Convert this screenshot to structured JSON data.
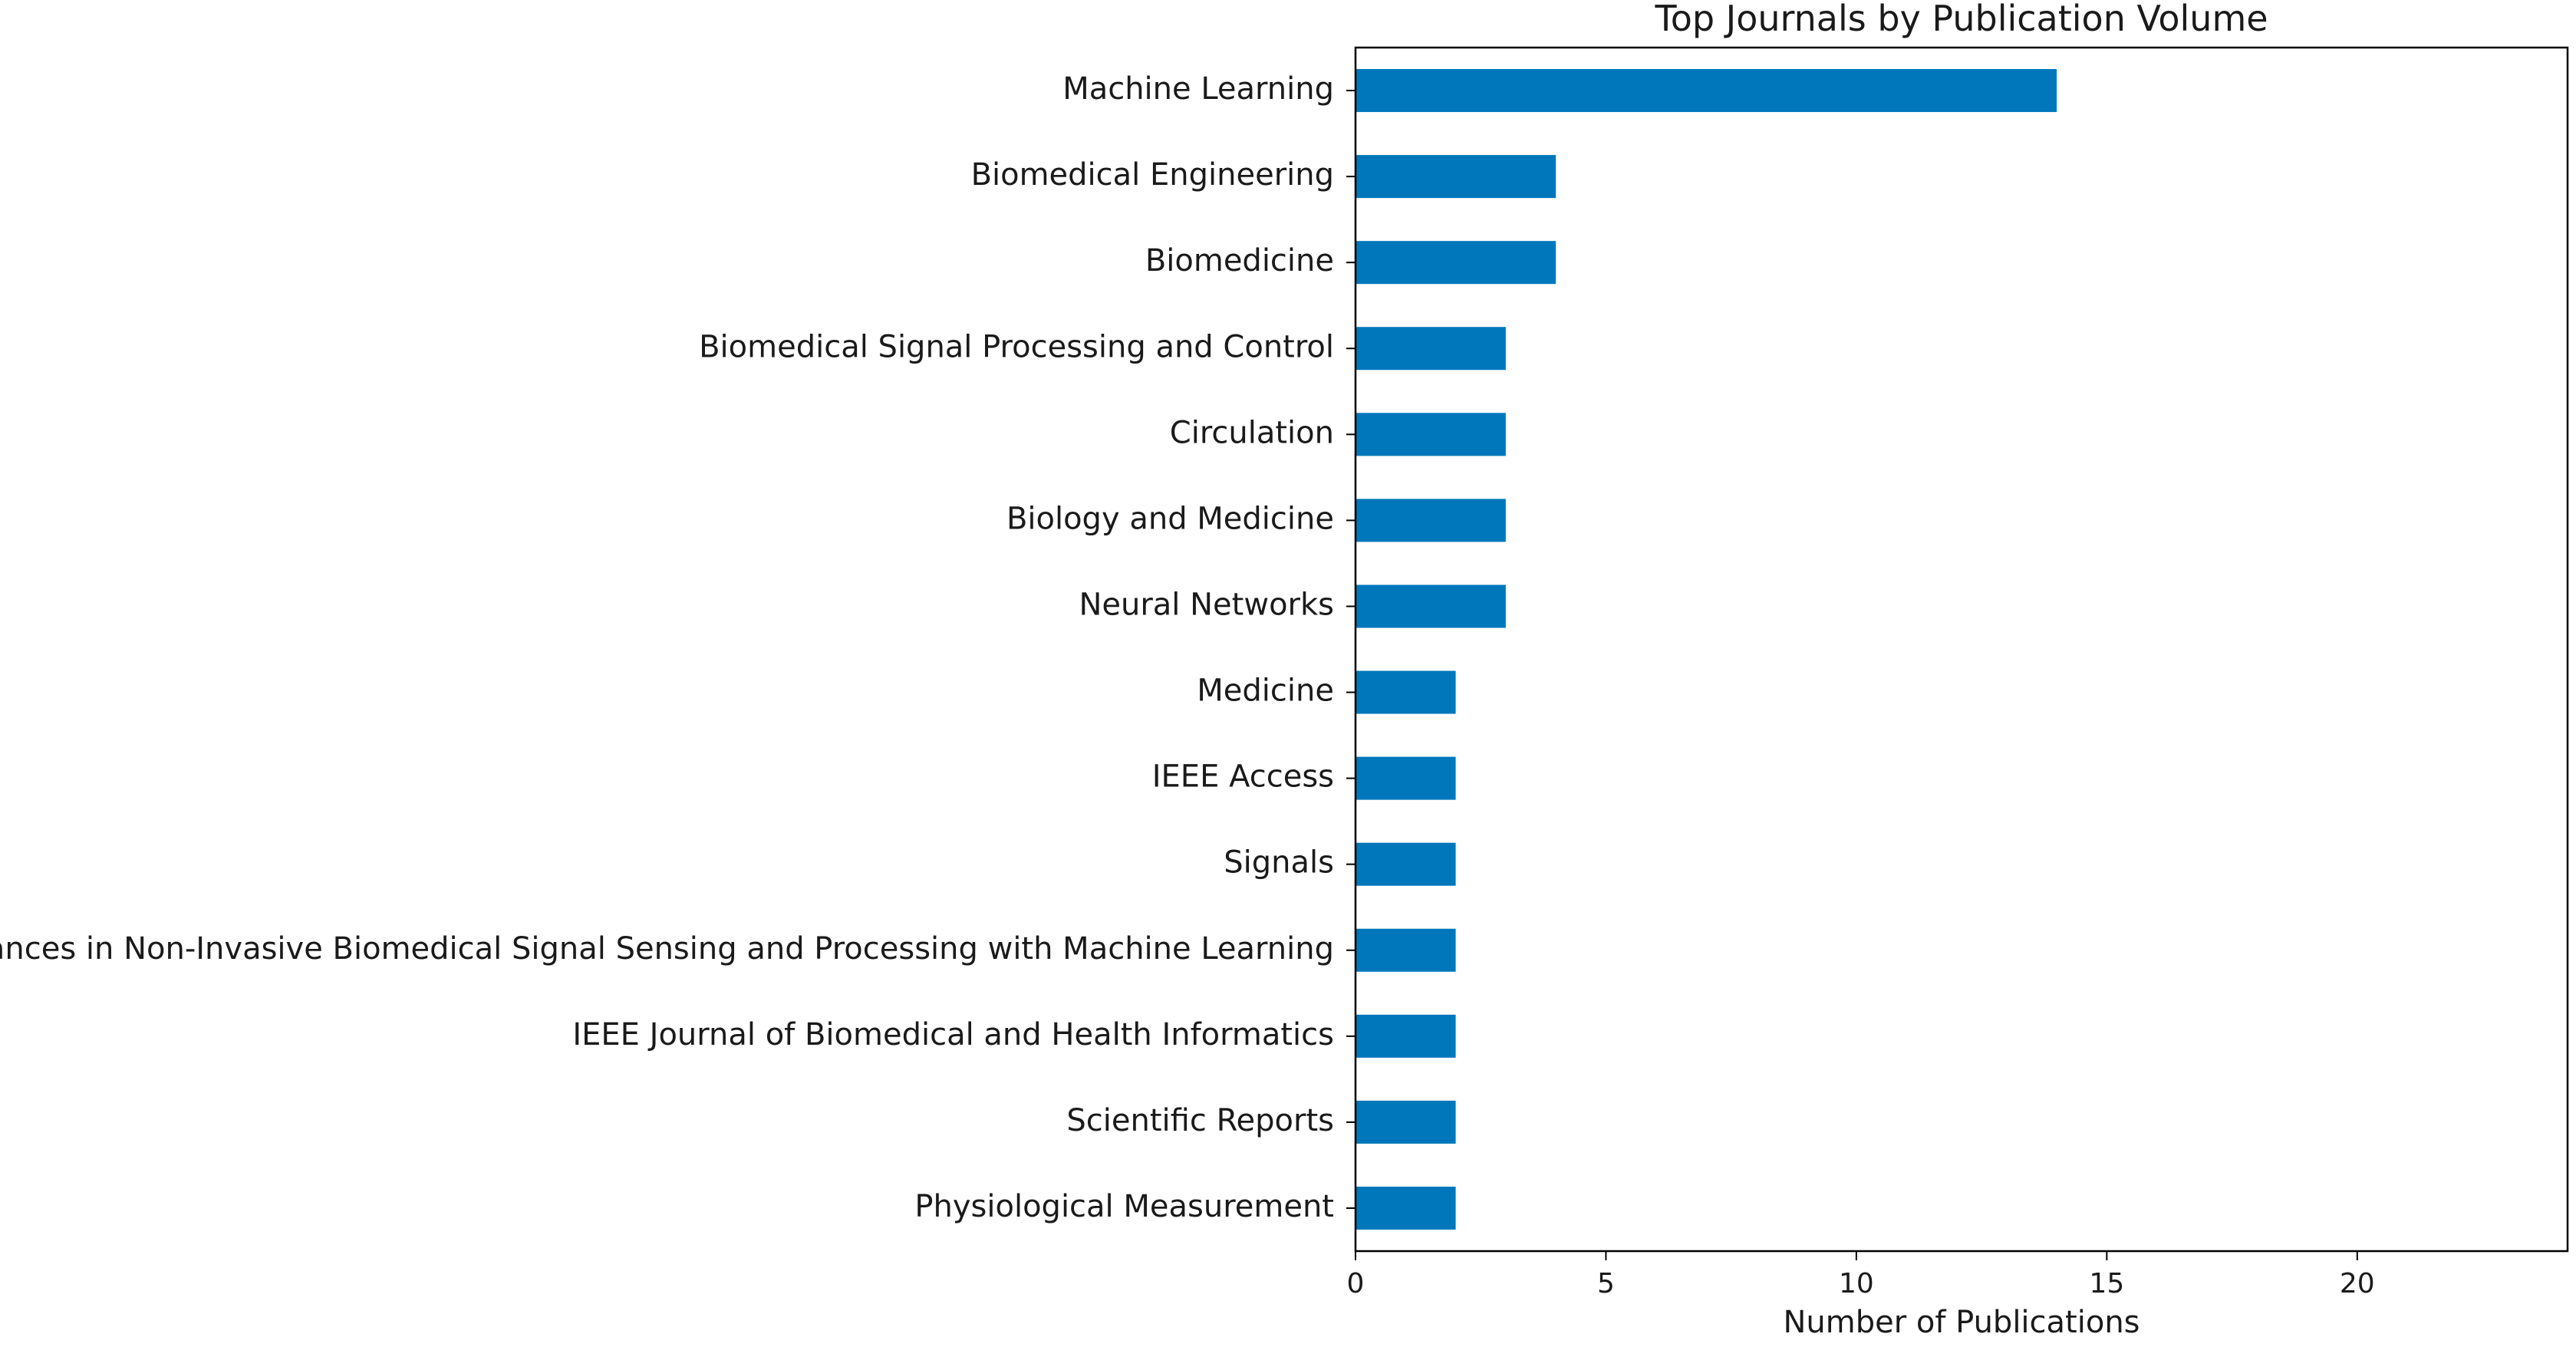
{
  "chart_data": {
    "type": "bar",
    "orientation": "horizontal",
    "title": "Top Journals by Publication Volume",
    "xlabel": "Number of Publications",
    "ylabel": "",
    "xlim": [
      0,
      24.2
    ],
    "xticks": [
      0,
      5,
      10,
      15,
      20
    ],
    "grid": false,
    "categories": [
      "Machine Learning",
      "Biomedical Engineering",
      "Biomedicine",
      "Biomedical Signal Processing and Control",
      "Circulation",
      "Biology and Medicine",
      "Neural Networks",
      "Medicine",
      "IEEE Access",
      "Signals",
      "Advances in Non-Invasive Biomedical Signal Sensing and Processing with Machine Learning",
      "IEEE Journal of Biomedical and Health Informatics",
      "Scientific Reports",
      "Physiological Measurement"
    ],
    "values": [
      14,
      4,
      4,
      3,
      3,
      3,
      3,
      2,
      2,
      2,
      2,
      2,
      2,
      2
    ],
    "bar_color": "#0077bb"
  }
}
